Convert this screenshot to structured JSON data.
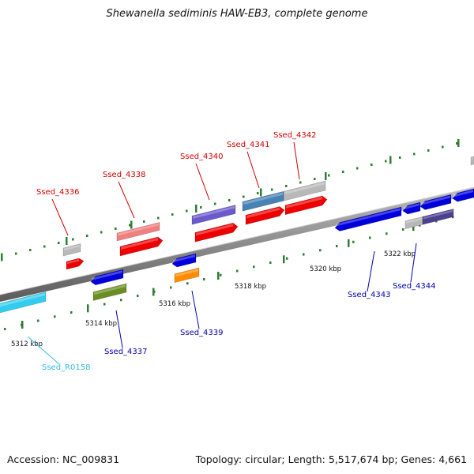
{
  "title": "Shewanella sediminis HAW-EB3, complete genome",
  "footer": {
    "accession": "Accession: NC_009831",
    "summary": "Topology: circular; Length: 5,517,674 bp; Genes: 4,661"
  },
  "scale_labels": [
    "5312 kbp",
    "5314 kbp",
    "5316 kbp",
    "5318 kbp",
    "5320 kbp",
    "5322 kbp"
  ],
  "label_colors": {
    "forward": "#cc0000",
    "reverse": "#0000aa",
    "rna": "#33bbdd"
  },
  "genes": [
    {
      "name": "Ssed_4336",
      "strand": "forward"
    },
    {
      "name": "Ssed_4338",
      "strand": "forward"
    },
    {
      "name": "Ssed_4340",
      "strand": "forward"
    },
    {
      "name": "Ssed_4341",
      "strand": "forward"
    },
    {
      "name": "Ssed_4342",
      "strand": "forward"
    },
    {
      "name": "Ssed_4337",
      "strand": "reverse"
    },
    {
      "name": "Ssed_4339",
      "strand": "reverse"
    },
    {
      "name": "Ssed_4343",
      "strand": "reverse"
    },
    {
      "name": "Ssed_4344",
      "strand": "reverse"
    },
    {
      "name": "Ssed_R0158",
      "strand": "rna"
    }
  ]
}
